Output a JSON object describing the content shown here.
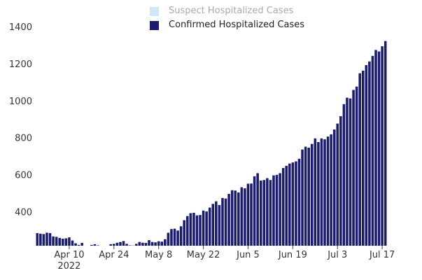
{
  "legend": {
    "suspect": {
      "label": "Suspect Hospitalized Cases",
      "color": "#cfe6f4",
      "text_color": "#aaaaaa"
    },
    "confirmed": {
      "label": "Confirmed Hospitalized Cases",
      "color": "#1c1c6e",
      "text_color": "#222222"
    }
  },
  "chart_data": {
    "type": "bar",
    "title": "",
    "xlabel": "",
    "ylabel": "",
    "ylim": [
      220,
      1340
    ],
    "y_ticks": [
      400,
      600,
      800,
      1000,
      1200,
      1400
    ],
    "x_ticks": [
      {
        "label": "Apr 10",
        "sub": "2022",
        "day": 10
      },
      {
        "label": "Apr 24",
        "day": 24
      },
      {
        "label": "May 8",
        "day": 38
      },
      {
        "label": "May 22",
        "day": 52
      },
      {
        "label": "Jun 5",
        "day": 66
      },
      {
        "label": "Jun 19",
        "day": 80
      },
      {
        "label": "Jul 3",
        "day": 94
      },
      {
        "label": "Jul 17",
        "day": 108
      }
    ],
    "start_date": "2022-03-31",
    "grid": false,
    "legend_position": "top",
    "series": [
      {
        "name": "Suspect Hospitalized Cases",
        "color": "#cfe6f4",
        "values": []
      },
      {
        "name": "Confirmed Hospitalized Cases",
        "color": "#1c1c6e",
        "values": [
          288,
          285,
          283,
          290,
          288,
          270,
          268,
          262,
          258,
          260,
          265,
          248,
          233,
          224,
          235,
          214,
          208,
          224,
          228,
          222,
          216,
          210,
          215,
          228,
          230,
          236,
          240,
          245,
          230,
          222,
          221,
          230,
          240,
          236,
          235,
          250,
          240,
          238,
          244,
          242,
          255,
          290,
          310,
          312,
          302,
          325,
          358,
          380,
          396,
          398,
          384,
          386,
          410,
          405,
          426,
          446,
          460,
          440,
          478,
          475,
          500,
          520,
          518,
          508,
          536,
          530,
          555,
          556,
          595,
          612,
          572,
          575,
          585,
          575,
          600,
          603,
          612,
          640,
          652,
          664,
          670,
          676,
          690,
          740,
          755,
          750,
          770,
          800,
          780,
          800,
          795,
          810,
          822,
          848,
          880,
          920,
          985,
          1020,
          1016,
          1062,
          1080,
          1152,
          1166,
          1196,
          1216,
          1246,
          1278,
          1270,
          1298,
          1326
        ]
      }
    ]
  }
}
